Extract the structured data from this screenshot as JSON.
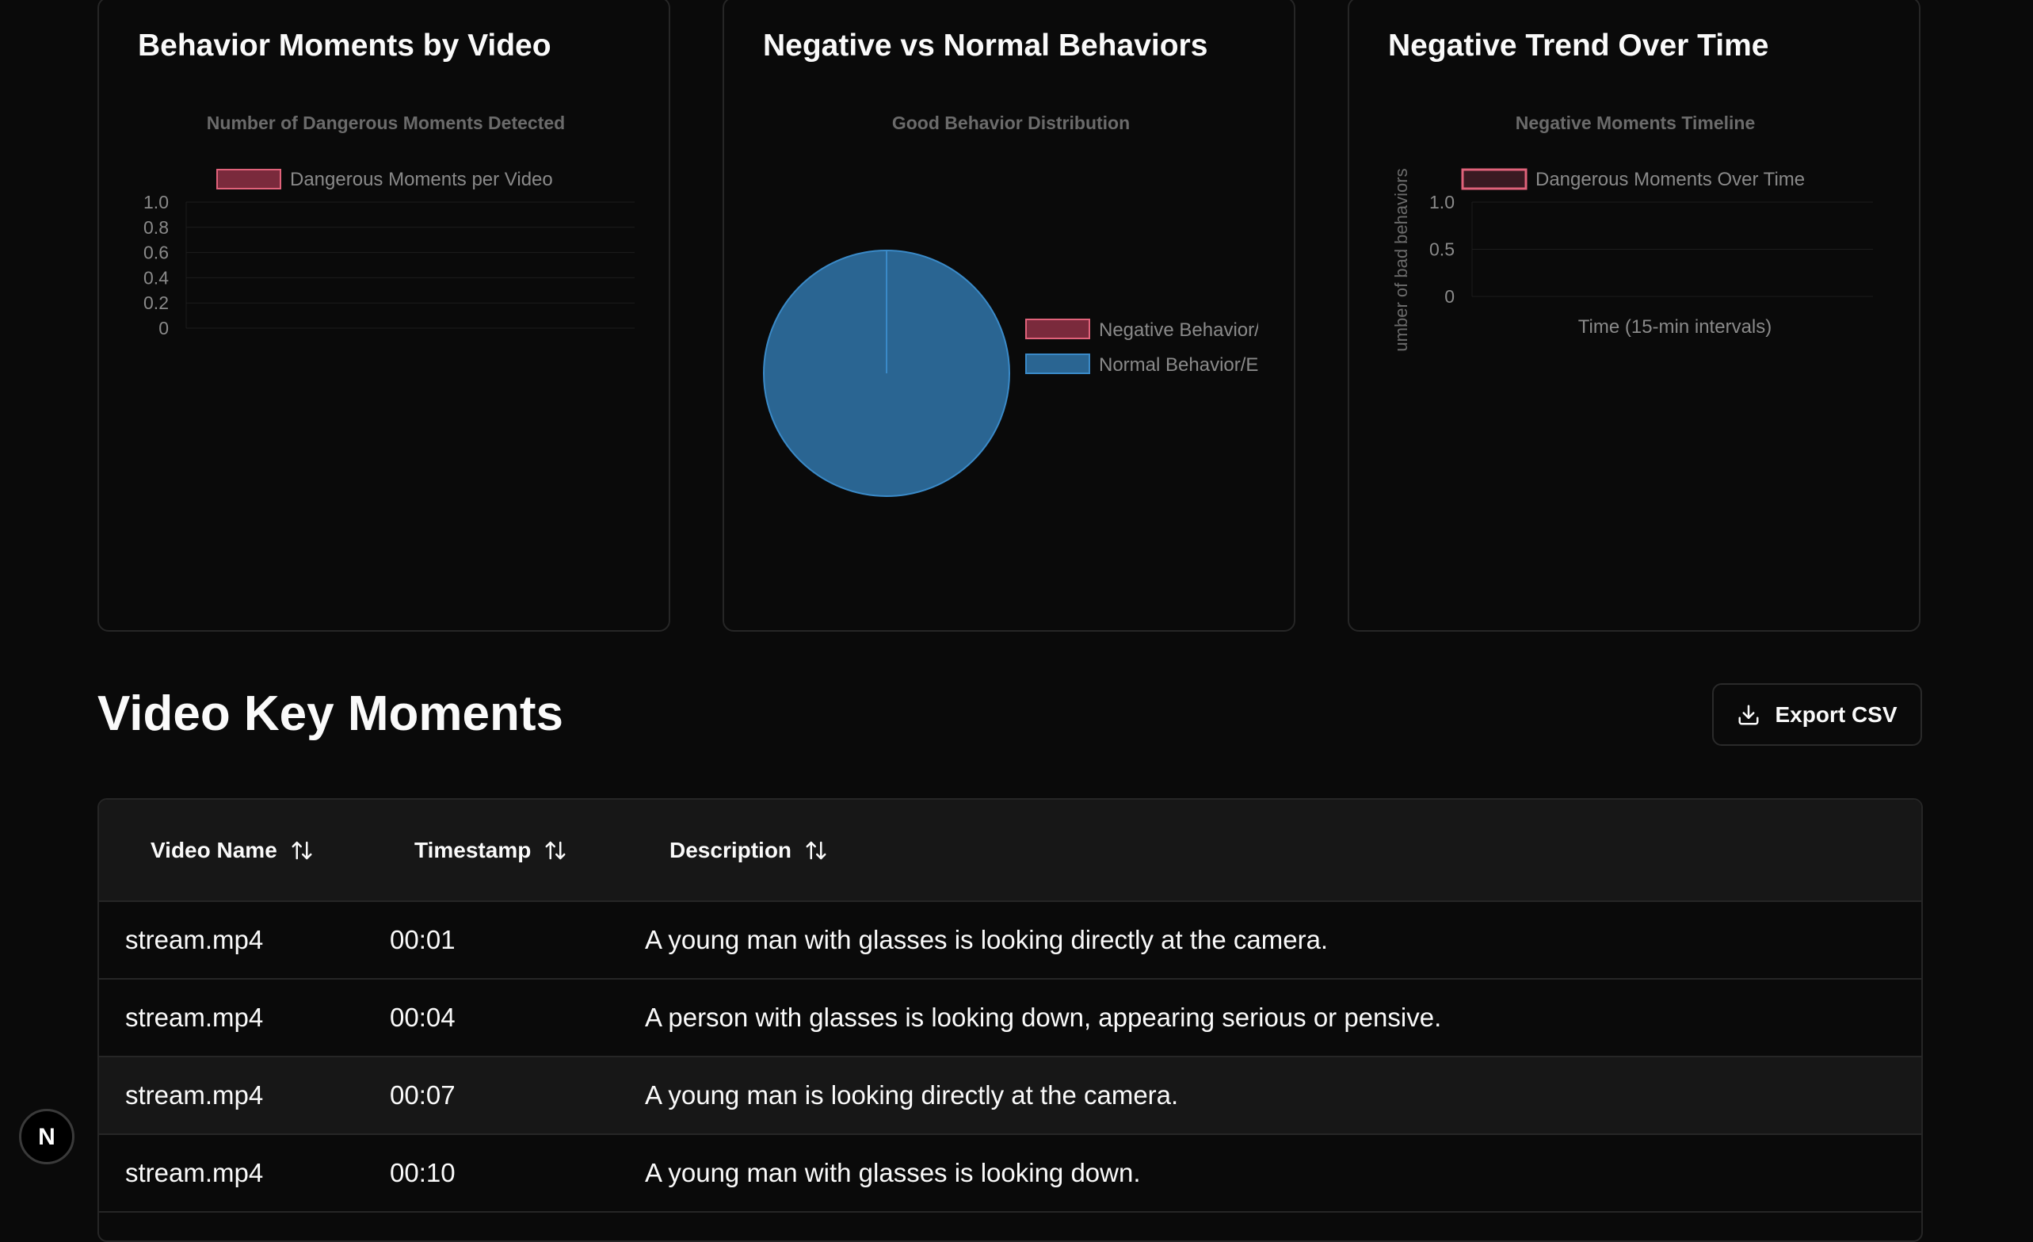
{
  "cards": [
    {
      "title": "Behavior Moments by Video",
      "chart_data": {
        "type": "bar",
        "title": "Number of Dangerous Moments Detected",
        "series": [
          {
            "name": "Dangerous Moments per Video",
            "values": []
          }
        ],
        "categories": [],
        "yticks": [
          "1.0",
          "0.8",
          "0.6",
          "0.4",
          "0.2",
          "0"
        ],
        "ylim": [
          0,
          1
        ],
        "grid": true,
        "legend": "top"
      }
    },
    {
      "title": "Negative vs Normal Behaviors",
      "chart_data": {
        "type": "pie",
        "title": "Good Behavior Distribution",
        "labels": [
          "Negative Behavior/",
          "Normal Behavior/E"
        ],
        "values": [
          0,
          100
        ],
        "colors": [
          "#7a2a3c",
          "#2a6592"
        ],
        "legend": "right"
      }
    },
    {
      "title": "Negative Trend Over Time",
      "chart_data": {
        "type": "line",
        "title": "Negative Moments Timeline",
        "series": [
          {
            "name": "Dangerous Moments Over Time",
            "values": []
          }
        ],
        "x": [],
        "yticks": [
          "1.0",
          "0.5",
          "0"
        ],
        "ylim": [
          0,
          1
        ],
        "ylabel": "umber of bad behaviors",
        "xlabel": "Time (15-min intervals)",
        "legend": "top"
      }
    }
  ],
  "section": {
    "title": "Video Key Moments",
    "export_label": "Export CSV",
    "export_icon": "download-icon"
  },
  "table": {
    "headers": [
      "Video Name",
      "Timestamp",
      "Description"
    ],
    "sort_icon": "sort-arrows-icon",
    "rows": [
      {
        "video": "stream.mp4",
        "time": "00:01",
        "desc": "A young man with glasses is looking directly at the camera."
      },
      {
        "video": "stream.mp4",
        "time": "00:04",
        "desc": "A person with glasses is looking down, appearing serious or pensive."
      },
      {
        "video": "stream.mp4",
        "time": "00:07",
        "desc": "A young man is looking directly at the camera."
      },
      {
        "video": "stream.mp4",
        "time": "00:10",
        "desc": "A young man with glasses is looking down."
      }
    ]
  },
  "colors": {
    "background": "#0a0a0a",
    "card_border": "#262626",
    "negative": "#e0627a",
    "negative_fill": "#7a2a3c",
    "normal": "#2a6592",
    "normal_border": "#3a8ac8"
  },
  "badge": {
    "letter": "N"
  }
}
